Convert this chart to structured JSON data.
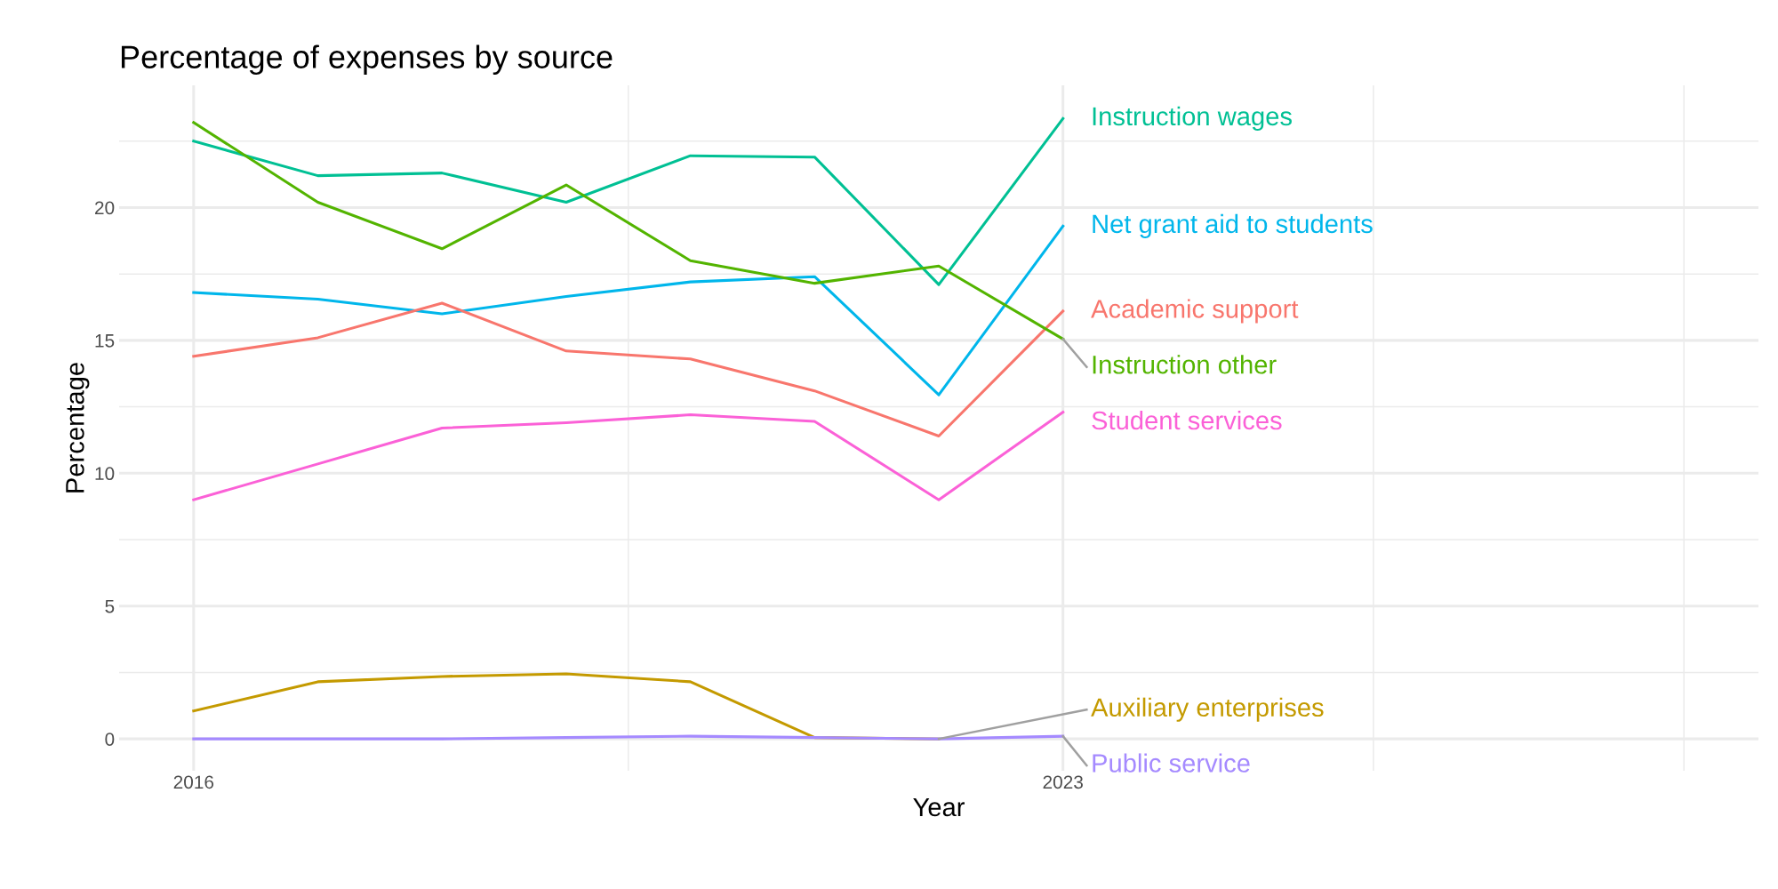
{
  "chart_data": {
    "type": "line",
    "title": "Percentage of expenses by source",
    "xlabel": "Year",
    "ylabel": "Percentage",
    "x": [
      2016,
      2017,
      2018,
      2019,
      2020,
      2021,
      2022,
      2023
    ],
    "series": [
      {
        "name": "Instruction wages",
        "color": "#00c094",
        "values": [
          22.5,
          21.2,
          21.3,
          20.2,
          21.95,
          21.9,
          17.1,
          23.35
        ]
      },
      {
        "name": "Net grant aid to students",
        "color": "#00b6eb",
        "values": [
          16.8,
          16.55,
          16.0,
          16.65,
          17.2,
          17.4,
          12.95,
          19.3
        ]
      },
      {
        "name": "Academic support",
        "color": "#f8766d",
        "values": [
          14.4,
          15.1,
          16.4,
          14.6,
          14.3,
          13.1,
          11.4,
          16.1
        ]
      },
      {
        "name": "Instruction other",
        "color": "#53b400",
        "values": [
          23.2,
          20.2,
          18.45,
          20.85,
          18.0,
          17.15,
          17.8,
          15.05
        ]
      },
      {
        "name": "Student services",
        "color": "#fb61d7",
        "values": [
          9.0,
          10.35,
          11.7,
          11.9,
          12.2,
          11.95,
          9.0,
          12.3
        ]
      },
      {
        "name": "Auxiliary enterprises",
        "color": "#c49a00",
        "values": [
          1.05,
          2.15,
          2.35,
          2.45,
          2.15,
          0.05,
          0.0,
          null
        ]
      },
      {
        "name": "Public service",
        "color": "#a58aff",
        "values": [
          0.0,
          0.0,
          0.0,
          0.05,
          0.1,
          0.05,
          0.0,
          0.1
        ]
      }
    ],
    "xlim": [
      2015.4,
      2028.6
    ],
    "ylim": [
      -1.2,
      24.6
    ],
    "xticks": [
      2016,
      {
        "value": 2019.5,
        "label": null
      },
      2023,
      {
        "value": 2025.5,
        "label": null
      },
      {
        "value": 2028,
        "label": null
      }
    ],
    "yticks": [
      0,
      {
        "value": 2.5,
        "label": null
      },
      5,
      {
        "value": 7.5,
        "label": null
      },
      10,
      {
        "value": 12.5,
        "label": null
      },
      15,
      {
        "value": 17.5,
        "label": null
      },
      20,
      {
        "value": 22.5,
        "label": null
      }
    ],
    "grid": true,
    "legend": false,
    "line_style": "solid",
    "marker": "none"
  }
}
